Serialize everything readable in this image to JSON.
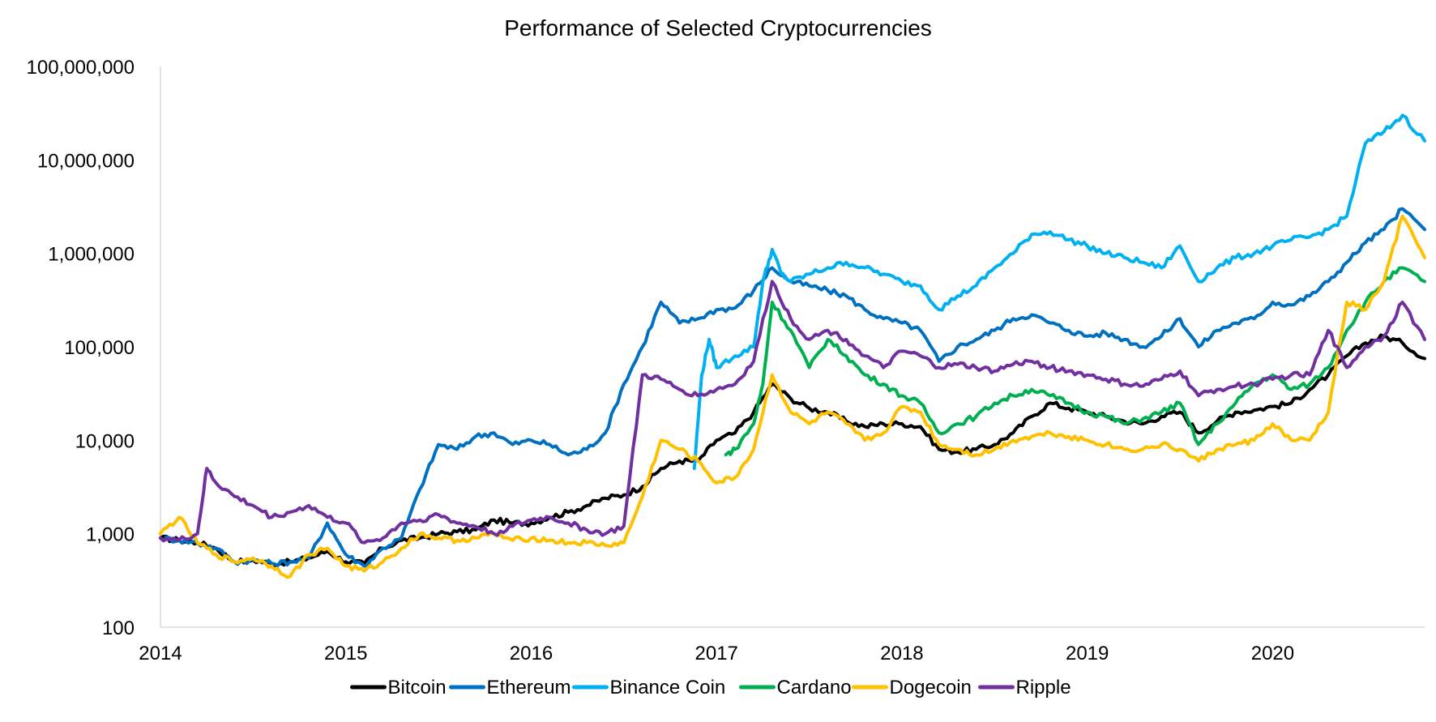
{
  "chart_data": {
    "type": "line",
    "title": "Performance of Selected Cryptocurrencies",
    "xlabel": "",
    "ylabel": "",
    "y_scale": "log",
    "ylim": [
      100,
      100000000
    ],
    "xlim": [
      2014,
      2020.82
    ],
    "x_ticks": [
      "2014",
      "2015",
      "2016",
      "2017",
      "2018",
      "2019",
      "2020"
    ],
    "y_ticks": [
      "100",
      "1,000",
      "10,000",
      "100,000",
      "1,000,000",
      "10,000,000",
      "100,000,000"
    ],
    "grid": false,
    "legend": "bottom",
    "series": [
      {
        "name": "Bitcoin",
        "color": "#000000",
        "x": [
          2014.0,
          2014.1,
          2014.2,
          2014.3,
          2014.4,
          2014.5,
          2014.6,
          2014.7,
          2014.8,
          2014.9,
          2015.0,
          2015.1,
          2015.2,
          2015.3,
          2015.4,
          2015.5,
          2015.6,
          2015.7,
          2015.8,
          2015.9,
          2016.0,
          2016.1,
          2016.2,
          2016.3,
          2016.4,
          2016.5,
          2016.6,
          2016.7,
          2016.8,
          2016.9,
          2017.0,
          2017.1,
          2017.2,
          2017.3,
          2017.4,
          2017.5,
          2017.6,
          2017.7,
          2017.8,
          2017.9,
          2018.0,
          2018.1,
          2018.2,
          2018.3,
          2018.4,
          2018.5,
          2018.6,
          2018.7,
          2018.8,
          2018.9,
          2019.0,
          2019.1,
          2019.2,
          2019.3,
          2019.4,
          2019.5,
          2019.6,
          2019.7,
          2019.8,
          2019.9,
          2020.0,
          2020.1,
          2020.2,
          2020.3,
          2020.4,
          2020.5,
          2020.6,
          2020.7,
          2020.82
        ],
        "values": [
          900,
          850,
          800,
          700,
          500,
          520,
          480,
          500,
          550,
          650,
          500,
          480,
          700,
          850,
          900,
          1000,
          1050,
          1100,
          1400,
          1300,
          1300,
          1500,
          1700,
          2000,
          2400,
          2600,
          3200,
          5000,
          6000,
          6000,
          10000,
          12000,
          20000,
          40000,
          28000,
          22000,
          20000,
          16000,
          14000,
          15000,
          15000,
          14000,
          8000,
          7500,
          8000,
          9000,
          12000,
          18000,
          25000,
          22000,
          20000,
          18000,
          16000,
          15000,
          18000,
          20000,
          12000,
          16000,
          20000,
          21000,
          23000,
          25000,
          35000,
          50000,
          80000,
          110000,
          130000,
          110000,
          75000
        ]
      },
      {
        "name": "Ethereum",
        "color": "#0070c0",
        "x": [
          2014.0,
          2014.1,
          2014.2,
          2014.3,
          2014.4,
          2014.5,
          2014.6,
          2014.7,
          2014.8,
          2014.9,
          2015.0,
          2015.1,
          2015.2,
          2015.3,
          2015.4,
          2015.5,
          2015.6,
          2015.7,
          2015.8,
          2015.9,
          2016.0,
          2016.1,
          2016.2,
          2016.3,
          2016.4,
          2016.5,
          2016.6,
          2016.7,
          2016.8,
          2016.9,
          2017.0,
          2017.1,
          2017.2,
          2017.3,
          2017.4,
          2017.5,
          2017.6,
          2017.7,
          2017.8,
          2017.9,
          2018.0,
          2018.1,
          2018.2,
          2018.3,
          2018.4,
          2018.5,
          2018.6,
          2018.7,
          2018.8,
          2018.9,
          2019.0,
          2019.1,
          2019.2,
          2019.3,
          2019.4,
          2019.5,
          2019.6,
          2019.7,
          2019.8,
          2019.9,
          2020.0,
          2020.1,
          2020.2,
          2020.3,
          2020.4,
          2020.5,
          2020.6,
          2020.7,
          2020.82
        ],
        "values": [
          900,
          850,
          800,
          700,
          500,
          520,
          480,
          500,
          550,
          1300,
          600,
          450,
          700,
          900,
          3000,
          9000,
          8000,
          11000,
          12000,
          9000,
          10000,
          9000,
          7000,
          8000,
          12000,
          40000,
          100000,
          300000,
          180000,
          200000,
          250000,
          260000,
          400000,
          700000,
          500000,
          450000,
          400000,
          350000,
          250000,
          200000,
          180000,
          150000,
          70000,
          100000,
          120000,
          150000,
          200000,
          220000,
          180000,
          150000,
          130000,
          140000,
          120000,
          100000,
          130000,
          200000,
          100000,
          150000,
          180000,
          200000,
          300000,
          280000,
          350000,
          500000,
          800000,
          1300000,
          1800000,
          3000000,
          1800000
        ]
      },
      {
        "name": "Binance Coin",
        "color": "#00b0f0",
        "x": [
          2016.88,
          2016.92,
          2016.96,
          2017.0,
          2017.1,
          2017.2,
          2017.25,
          2017.3,
          2017.35,
          2017.4,
          2017.5,
          2017.6,
          2017.7,
          2017.8,
          2017.9,
          2018.0,
          2018.1,
          2018.2,
          2018.3,
          2018.4,
          2018.5,
          2018.6,
          2018.7,
          2018.8,
          2018.9,
          2019.0,
          2019.1,
          2019.2,
          2019.3,
          2019.4,
          2019.5,
          2019.6,
          2019.7,
          2019.8,
          2019.9,
          2020.0,
          2020.1,
          2020.2,
          2020.3,
          2020.4,
          2020.5,
          2020.6,
          2020.7,
          2020.82
        ],
        "values": [
          5000,
          50000,
          120000,
          60000,
          80000,
          100000,
          500000,
          1100000,
          600000,
          500000,
          600000,
          700000,
          800000,
          700000,
          600000,
          500000,
          450000,
          250000,
          350000,
          450000,
          700000,
          1000000,
          1600000,
          1700000,
          1400000,
          1200000,
          1000000,
          900000,
          800000,
          700000,
          1200000,
          500000,
          700000,
          900000,
          1000000,
          1200000,
          1400000,
          1500000,
          1800000,
          2500000,
          15000000,
          20000000,
          30000000,
          16000000
        ]
      },
      {
        "name": "Cardano",
        "color": "#00b050",
        "x": [
          2017.05,
          2017.1,
          2017.2,
          2017.25,
          2017.3,
          2017.4,
          2017.5,
          2017.6,
          2017.7,
          2017.8,
          2017.9,
          2018.0,
          2018.1,
          2018.2,
          2018.3,
          2018.4,
          2018.5,
          2018.6,
          2018.7,
          2018.8,
          2018.9,
          2019.0,
          2019.1,
          2019.2,
          2019.3,
          2019.4,
          2019.5,
          2019.6,
          2019.7,
          2019.8,
          2019.9,
          2020.0,
          2020.1,
          2020.2,
          2020.3,
          2020.4,
          2020.5,
          2020.6,
          2020.7,
          2020.82
        ],
        "values": [
          7000,
          8000,
          15000,
          40000,
          300000,
          150000,
          60000,
          120000,
          80000,
          50000,
          40000,
          30000,
          25000,
          12000,
          15000,
          18000,
          25000,
          30000,
          35000,
          30000,
          25000,
          20000,
          18000,
          15000,
          17000,
          20000,
          25000,
          9000,
          15000,
          25000,
          40000,
          50000,
          35000,
          40000,
          60000,
          150000,
          300000,
          500000,
          700000,
          500000
        ]
      },
      {
        "name": "Dogecoin",
        "color": "#ffc000",
        "x": [
          2014.0,
          2014.1,
          2014.2,
          2014.3,
          2014.4,
          2014.5,
          2014.6,
          2014.7,
          2014.8,
          2014.9,
          2015.0,
          2015.1,
          2015.2,
          2015.3,
          2015.4,
          2015.5,
          2015.6,
          2015.7,
          2015.8,
          2015.9,
          2016.0,
          2016.1,
          2016.2,
          2016.3,
          2016.4,
          2016.5,
          2016.6,
          2016.7,
          2016.8,
          2016.9,
          2017.0,
          2017.1,
          2017.2,
          2017.3,
          2017.4,
          2017.5,
          2017.6,
          2017.7,
          2017.8,
          2017.9,
          2018.0,
          2018.1,
          2018.2,
          2018.3,
          2018.4,
          2018.5,
          2018.6,
          2018.7,
          2018.8,
          2018.9,
          2019.0,
          2019.1,
          2019.2,
          2019.3,
          2019.4,
          2019.5,
          2019.6,
          2019.7,
          2019.8,
          2019.9,
          2020.0,
          2020.1,
          2020.2,
          2020.3,
          2020.4,
          2020.5,
          2020.6,
          2020.7,
          2020.82
        ],
        "values": [
          1000,
          1500,
          800,
          600,
          500,
          550,
          450,
          350,
          600,
          700,
          450,
          400,
          500,
          700,
          1000,
          900,
          850,
          900,
          1000,
          850,
          900,
          850,
          800,
          800,
          750,
          800,
          2500,
          10000,
          8000,
          6000,
          3500,
          4000,
          8000,
          50000,
          20000,
          15000,
          20000,
          15000,
          10000,
          12000,
          23000,
          20000,
          9000,
          8000,
          7000,
          8000,
          10000,
          11000,
          12000,
          11000,
          10000,
          9000,
          8000,
          8000,
          9000,
          8000,
          6000,
          8000,
          9000,
          10000,
          15000,
          10000,
          10000,
          20000,
          300000,
          250000,
          500000,
          2500000,
          900000
        ]
      },
      {
        "name": "Ripple",
        "color": "#7030a0",
        "x": [
          2014.0,
          2014.1,
          2014.2,
          2014.25,
          2014.3,
          2014.4,
          2014.5,
          2014.6,
          2014.7,
          2014.8,
          2014.9,
          2015.0,
          2015.1,
          2015.2,
          2015.3,
          2015.4,
          2015.5,
          2015.6,
          2015.7,
          2015.8,
          2015.9,
          2016.0,
          2016.1,
          2016.2,
          2016.3,
          2016.4,
          2016.5,
          2016.6,
          2016.7,
          2016.8,
          2016.9,
          2017.0,
          2017.1,
          2017.2,
          2017.3,
          2017.4,
          2017.5,
          2017.6,
          2017.7,
          2017.8,
          2017.9,
          2018.0,
          2018.1,
          2018.2,
          2018.3,
          2018.4,
          2018.5,
          2018.6,
          2018.7,
          2018.8,
          2018.9,
          2019.0,
          2019.1,
          2019.2,
          2019.3,
          2019.4,
          2019.5,
          2019.6,
          2019.7,
          2019.8,
          2019.9,
          2020.0,
          2020.1,
          2020.2,
          2020.3,
          2020.4,
          2020.5,
          2020.6,
          2020.7,
          2020.82
        ],
        "values": [
          900,
          850,
          1000,
          5000,
          3500,
          2500,
          2000,
          1500,
          1700,
          2000,
          1500,
          1300,
          800,
          900,
          1300,
          1400,
          1600,
          1300,
          1200,
          1000,
          1200,
          1400,
          1500,
          1300,
          1100,
          1000,
          1200,
          50000,
          45000,
          35000,
          30000,
          35000,
          40000,
          70000,
          500000,
          200000,
          120000,
          150000,
          120000,
          80000,
          60000,
          90000,
          80000,
          60000,
          65000,
          60000,
          55000,
          65000,
          70000,
          60000,
          55000,
          50000,
          45000,
          40000,
          38000,
          45000,
          55000,
          30000,
          35000,
          38000,
          40000,
          45000,
          50000,
          50000,
          150000,
          60000,
          100000,
          130000,
          300000,
          120000
        ]
      }
    ]
  }
}
